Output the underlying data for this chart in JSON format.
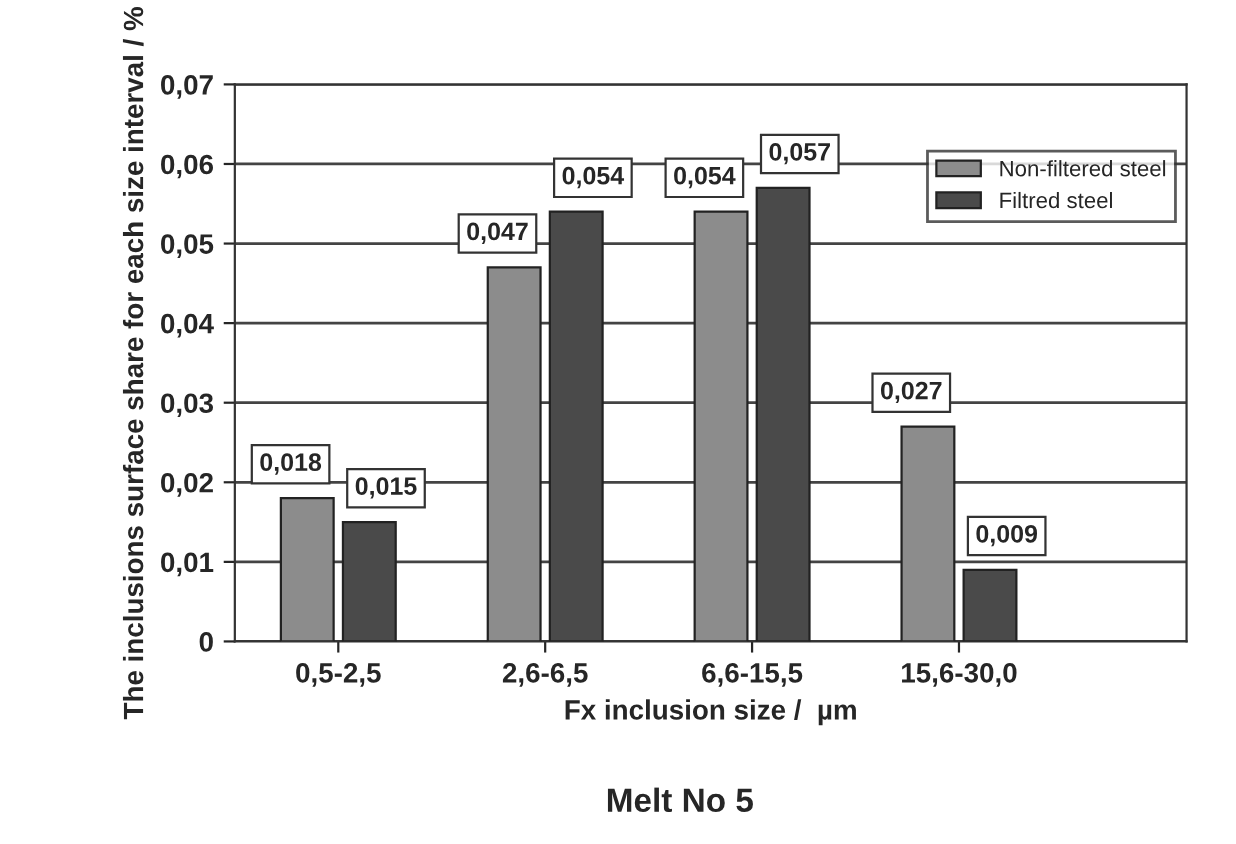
{
  "chart_data": {
    "type": "bar",
    "title": "Melt No 5",
    "xlabel": "Fx inclusion size /  µm",
    "ylabel": "The inclusions surface share for each size interval / %",
    "categories": [
      "0,5-2,5",
      "2,6-6,5",
      "6,6-15,5",
      "15,6-30,0"
    ],
    "series": [
      {
        "name": "Non-filtered steel",
        "color": "#8c8c8c",
        "values": [
          0.018,
          0.047,
          0.054,
          0.027
        ],
        "value_labels": [
          "0,018",
          "0,047",
          "0,054",
          "0,027"
        ]
      },
      {
        "name": "Filtred steel",
        "color": "#4a4a4a",
        "values": [
          0.015,
          0.054,
          0.057,
          0.009
        ],
        "value_labels": [
          "0,015",
          "0,054",
          "0,057",
          "0,009"
        ]
      }
    ],
    "ylim": [
      0,
      0.07
    ],
    "yticks": [
      0,
      {
        "value": 0.01,
        "label": "0,01"
      },
      {
        "value": 0.02,
        "label": "0,02"
      },
      {
        "value": 0.03,
        "label": "0,03"
      },
      {
        "value": 0.04,
        "label": "0,04"
      },
      {
        "value": 0.05,
        "label": "0,05"
      },
      {
        "value": 0.06,
        "label": "0,06"
      },
      {
        "value": 0.07,
        "label": "0,07"
      }
    ],
    "grid": "y",
    "legend": "top right"
  }
}
